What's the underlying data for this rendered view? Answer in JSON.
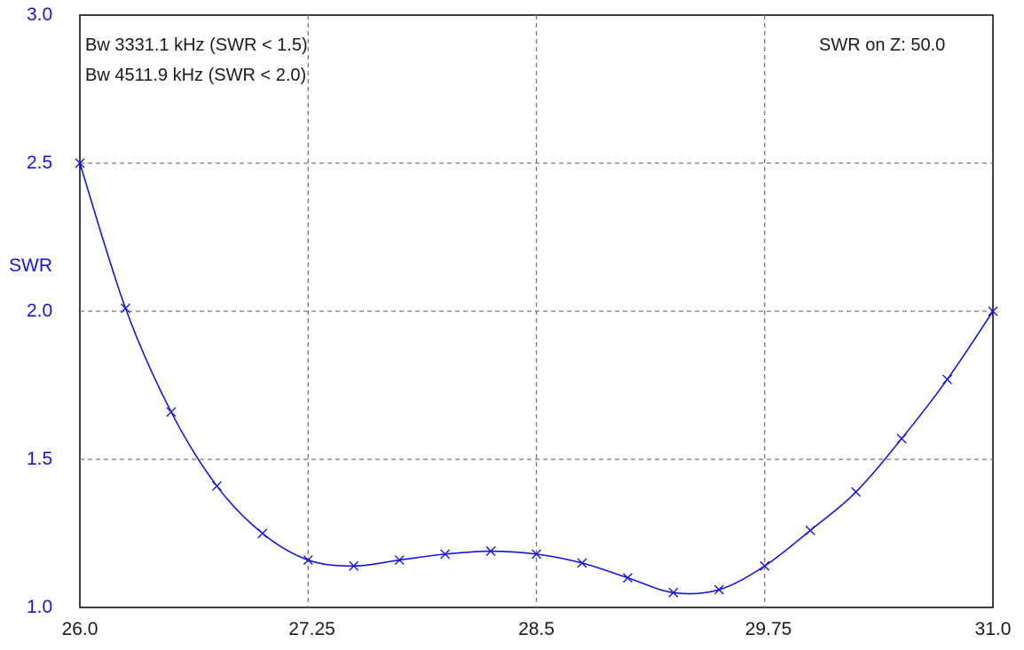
{
  "annotations": {
    "bw1": "Bw 3331.1 kHz (SWR < 1.5)",
    "bw2": "Bw 4511.9 kHz (SWR < 2.0)",
    "z": "SWR on Z: 50.0"
  },
  "chart_data": {
    "type": "line",
    "title": "",
    "xlabel": "",
    "ylabel": "SWR",
    "xlim": [
      26.0,
      31.0
    ],
    "ylim": [
      1.0,
      3.0
    ],
    "x_ticks": [
      "26.0",
      "27.25",
      "28.5",
      "29.75",
      "31.0"
    ],
    "x_tick_values": [
      26.0,
      27.25,
      28.5,
      29.75,
      31.0
    ],
    "y_ticks": [
      "1.0",
      "1.5",
      "2.0",
      "2.5",
      "3.0"
    ],
    "y_tick_values": [
      1.0,
      1.5,
      2.0,
      2.5,
      3.0
    ],
    "grid": true,
    "series": [
      {
        "color": "#1515e0",
        "x": [
          26.0,
          26.25,
          26.5,
          26.75,
          27.0,
          27.25,
          27.5,
          27.75,
          28.0,
          28.25,
          28.5,
          28.75,
          29.0,
          29.25,
          29.5,
          29.75,
          30.0,
          30.25,
          30.5,
          30.75,
          31.0
        ],
        "values": [
          2.5,
          2.01,
          1.66,
          1.41,
          1.25,
          1.16,
          1.14,
          1.16,
          1.18,
          1.19,
          1.18,
          1.15,
          1.1,
          1.05,
          1.06,
          1.14,
          1.26,
          1.39,
          1.57,
          1.77,
          2.0
        ]
      }
    ]
  }
}
